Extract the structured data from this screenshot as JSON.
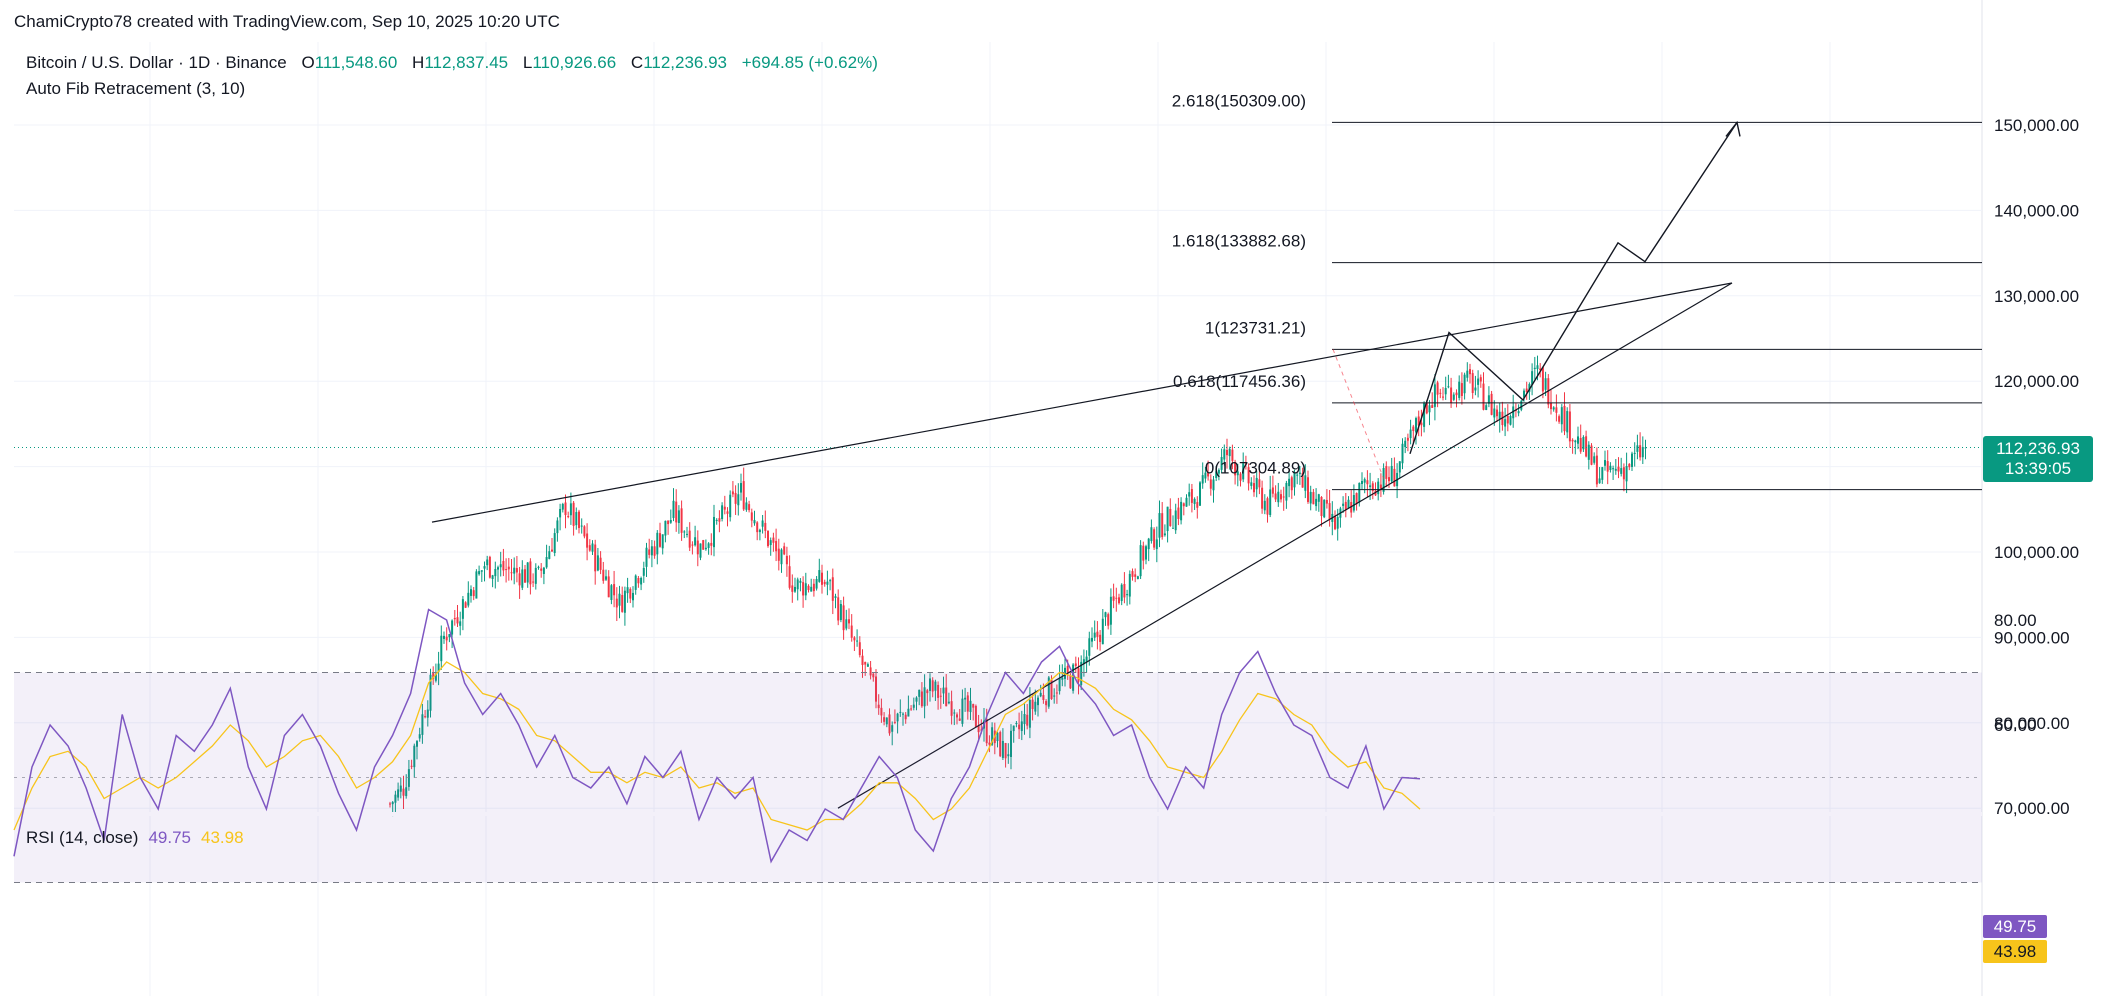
{
  "credit": "ChamiCrypto78 created with TradingView.com, Sep 10, 2025 10:20 UTC",
  "symbol": {
    "name": "Bitcoin / U.S. Dollar · 1D · Binance",
    "open_label": "O",
    "open": "111,548.60",
    "high_label": "H",
    "high": "112,837.45",
    "low_label": "L",
    "low": "110,926.66",
    "close_label": "C",
    "close": "112,236.93",
    "change": "+694.85 (+0.62%)"
  },
  "indicators": {
    "fib_name": "Auto Fib Retracement (3, 10)",
    "rsi_name": "RSI (14, close)",
    "rsi_value": "49.75",
    "rsi_ma_value": "43.98"
  },
  "price_badge": {
    "price": "112,236.93",
    "countdown": "13:39:05"
  },
  "colors": {
    "up": "#089981",
    "down": "#f23645",
    "rsi": "#7e57c2",
    "rsi_ma": "#f7c41b",
    "band": "#7e57c2"
  },
  "chart_data": [
    {
      "type": "candlestick",
      "title": "Bitcoin / U.S. Dollar · 1D · Binance",
      "y_axis_ticks": [
        "150,000.00",
        "140,000.00",
        "130,000.00",
        "120,000.00",
        "100,000.00",
        "90,000.00",
        "80,000.00",
        "70,000.00"
      ],
      "y_tick_values": [
        150000,
        140000,
        130000,
        120000,
        100000,
        90000,
        80000,
        70000
      ],
      "ylim": [
        70000,
        152500
      ],
      "grid": true,
      "fib_levels": [
        {
          "label": "2.618(150309.00)",
          "value": 150309.0
        },
        {
          "label": "1.618(133882.68)",
          "value": 133882.68
        },
        {
          "label": "1(123731.21)",
          "value": 123731.21
        },
        {
          "label": "0.618(117456.36)",
          "value": 117456.36
        },
        {
          "label": "0(107304.89)",
          "value": 107304.89
        }
      ],
      "anchors": [
        [
          0,
          70500
        ],
        [
          5,
          72500
        ],
        [
          20,
          90000
        ],
        [
          35,
          98500
        ],
        [
          55,
          97000
        ],
        [
          65,
          105500
        ],
        [
          85,
          94000
        ],
        [
          105,
          104500
        ],
        [
          115,
          100500
        ],
        [
          130,
          107000
        ],
        [
          150,
          96000
        ],
        [
          162,
          96500
        ],
        [
          172,
          89000
        ],
        [
          185,
          79500
        ],
        [
          200,
          84000
        ],
        [
          215,
          81000
        ],
        [
          228,
          76500
        ],
        [
          240,
          83000
        ],
        [
          255,
          86000
        ],
        [
          270,
          95000
        ],
        [
          285,
          103000
        ],
        [
          300,
          107000
        ],
        [
          310,
          111500
        ],
        [
          325,
          105500
        ],
        [
          335,
          109000
        ],
        [
          350,
          103000
        ],
        [
          360,
          107500
        ],
        [
          372,
          109000
        ],
        [
          385,
          118000
        ],
        [
          400,
          120000
        ],
        [
          412,
          115500
        ],
        [
          425,
          121000
        ],
        [
          438,
          114000
        ],
        [
          448,
          109000
        ],
        [
          458,
          110000
        ],
        [
          465,
          112237
        ]
      ],
      "last_close": 112236.93,
      "candle_count": 466
    },
    {
      "type": "line",
      "title": "RSI (14, close)",
      "y_axis_ticks": [
        "80.00",
        "60.00"
      ],
      "y_tick_values": [
        80,
        60
      ],
      "ylim": [
        28,
        86
      ],
      "band": [
        70,
        30
      ],
      "middle": 50,
      "series": [
        {
          "name": "RSI",
          "values": [
            35,
            52,
            60,
            56,
            48,
            38,
            62,
            50,
            44,
            58,
            55,
            60,
            67,
            52,
            44,
            58,
            62,
            56,
            47,
            40,
            52,
            58,
            66,
            82,
            80,
            68,
            62,
            66,
            60,
            52,
            58,
            50,
            48,
            52,
            45,
            54,
            50,
            55,
            42,
            50,
            46,
            50,
            34,
            40,
            38,
            44,
            42,
            48,
            54,
            50,
            40,
            36,
            46,
            52,
            62,
            70,
            66,
            72,
            75,
            68,
            64,
            58,
            60,
            50,
            44,
            52,
            48,
            62,
            70,
            74,
            66,
            60,
            58,
            50,
            48,
            56,
            44,
            50,
            49.75
          ]
        },
        {
          "name": "MA",
          "values": [
            40,
            48,
            54,
            55,
            52,
            46,
            48,
            50,
            48,
            50,
            53,
            56,
            60,
            57,
            52,
            54,
            57,
            58,
            54,
            48,
            50,
            53,
            58,
            68,
            72,
            70,
            66,
            65,
            63,
            58,
            57,
            54,
            51,
            51,
            49,
            51,
            50,
            52,
            48,
            49,
            47,
            48,
            42,
            41,
            40,
            42,
            42,
            45,
            49,
            49,
            46,
            42,
            44,
            48,
            55,
            62,
            64,
            67,
            70,
            69,
            67,
            63,
            61,
            57,
            52,
            51,
            50,
            55,
            61,
            66,
            65,
            62,
            60,
            55,
            52,
            53,
            48,
            47,
            43.98
          ]
        }
      ]
    }
  ]
}
